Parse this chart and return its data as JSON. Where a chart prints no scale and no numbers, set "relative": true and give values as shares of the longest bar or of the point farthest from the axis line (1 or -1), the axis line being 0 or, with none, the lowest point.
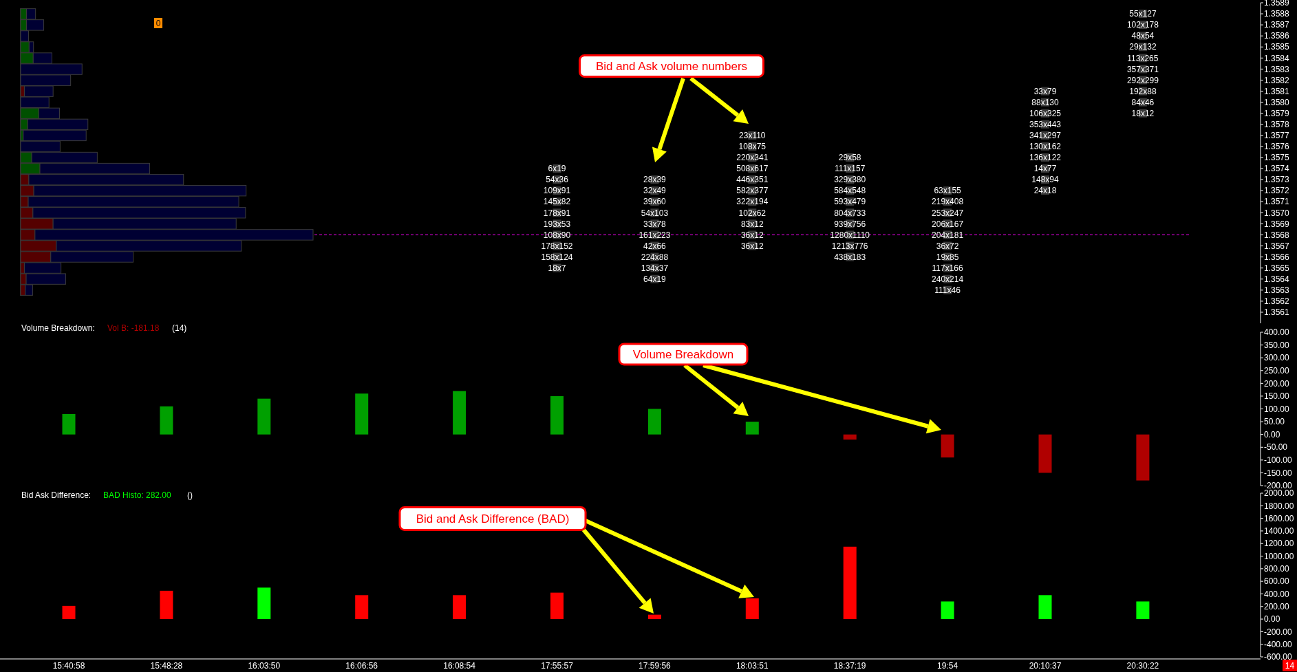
{
  "chart_data": [
    {
      "type": "scatter",
      "marker": "square",
      "categories": [
        "15:40:58",
        "15:48:28",
        "16:03:50",
        "16:06:56",
        "16:08:54",
        "17:55:57",
        "17:59:56",
        "18:03:51",
        "18:37:19",
        "19:54",
        "20:10:37",
        "20:30:22"
      ],
      "tick_labels": "y",
      "ylim": [
        1.356,
        1.3589
      ],
      "yticks": [
        1.3561,
        1.3562,
        1.3563,
        1.3564,
        1.3565,
        1.3566,
        1.3567,
        1.3568,
        1.3569,
        {
          "value": 1.357,
          "label": "1.3570"
        },
        1.3571,
        1.3572,
        1.3573,
        1.3574,
        1.3575,
        1.3576,
        1.3577,
        1.3578,
        1.3579,
        {
          "value": 1.358,
          "label": "1.3580"
        },
        1.3581,
        1.3582,
        1.3583,
        1.3584,
        1.3585,
        1.3586,
        1.3587,
        1.3588,
        1.3589
      ],
      "ref_lines": [
        {
          "axis": "y",
          "value": 1.3568,
          "color": "#ff00ff",
          "line_style": "dashed"
        }
      ],
      "annotations": [
        "Bid and Ask volume numbers",
        "0"
      ],
      "series": [
        {
          "color": "#3a3a3a",
          "x": [
            "17:55:57",
            "17:55:57",
            "17:55:57",
            "17:55:57",
            "17:55:57",
            "17:55:57",
            "17:55:57",
            "17:55:57",
            "17:55:57",
            "17:55:57"
          ],
          "values": [
            1.3574,
            1.3573,
            1.3572,
            1.3571,
            1.357,
            1.3569,
            1.3568,
            1.3567,
            1.3566,
            1.3565
          ],
          "value_labels": [
            "6x19",
            "54x36",
            "109x91",
            "145x82",
            "178x91",
            "193x53",
            "108x90",
            "178x152",
            "158x124",
            "18x7"
          ]
        },
        {
          "color": "#3a3a3a",
          "x": [
            "17:59:56",
            "17:59:56",
            "17:59:56",
            "17:59:56",
            "17:59:56",
            "17:59:56",
            "17:59:56",
            "17:59:56",
            "17:59:56",
            "17:59:56"
          ],
          "values": [
            1.3573,
            1.3572,
            1.3571,
            1.357,
            1.3569,
            1.3568,
            1.3567,
            1.3566,
            1.3565,
            1.3564
          ],
          "value_labels": [
            "28x39",
            "32x49",
            "39x60",
            "54x103",
            "33x78",
            "161x223",
            "42x66",
            "224x88",
            "134x37",
            "64x19"
          ]
        },
        {
          "color": "#3a3a3a",
          "x": [
            "18:03:51",
            "18:03:51",
            "18:03:51",
            "18:03:51",
            "18:03:51",
            "18:03:51",
            "18:03:51",
            "18:03:51",
            "18:03:51",
            "18:03:51",
            "18:03:51"
          ],
          "values": [
            1.3577,
            1.3576,
            1.3575,
            1.3574,
            1.3573,
            1.3572,
            1.3571,
            1.357,
            1.3569,
            1.3568,
            1.3567
          ],
          "value_labels": [
            "23x110",
            "108x75",
            "220x341",
            "508x617",
            "446x351",
            "582x377",
            "322x194",
            "102x62",
            "83x12",
            "36x12",
            "36x12"
          ]
        },
        {
          "color": "#3a3a3a",
          "x": [
            "18:37:19",
            "18:37:19",
            "18:37:19",
            "18:37:19",
            "18:37:19",
            "18:37:19",
            "18:37:19",
            "18:37:19",
            "18:37:19",
            "18:37:19"
          ],
          "values": [
            1.3575,
            1.3574,
            1.3573,
            1.3572,
            1.3571,
            1.357,
            1.3569,
            1.3568,
            1.3567,
            1.3566
          ],
          "value_labels": [
            "29x58",
            "111x157",
            "329x380",
            "584x548",
            "593x479",
            "804x733",
            "939x756",
            "1280x1110",
            "1213x776",
            "438x183"
          ]
        },
        {
          "color": "#3a3a3a",
          "x": [
            "19:54",
            "19:54",
            "19:54",
            "19:54",
            "19:54",
            "19:54",
            "19:54",
            "19:54",
            "19:54",
            "19:54"
          ],
          "values": [
            1.3572,
            1.3571,
            1.357,
            1.3569,
            1.3568,
            1.3567,
            1.3566,
            1.3565,
            1.3564,
            1.3563
          ],
          "value_labels": [
            "63x155",
            "219x408",
            "253x247",
            "206x167",
            "204x181",
            "36x72",
            "19x85",
            "117x166",
            "240x214",
            "111x46"
          ]
        },
        {
          "color": "#3a3a3a",
          "x": [
            "20:10:37",
            "20:10:37",
            "20:10:37",
            "20:10:37",
            "20:10:37",
            "20:10:37",
            "20:10:37",
            "20:10:37",
            "20:10:37",
            "20:10:37"
          ],
          "values": [
            1.3581,
            1.358,
            1.3579,
            1.3578,
            1.3577,
            1.3576,
            1.3575,
            1.3574,
            1.3573,
            1.3572
          ],
          "value_labels": [
            "33x79",
            "88x130",
            "106x325",
            "353x443",
            "341x297",
            "130x162",
            "136x122",
            "14x77",
            "148x94",
            "24x18"
          ]
        },
        {
          "color": "#3a3a3a",
          "x": [
            "20:30:22",
            "20:30:22",
            "20:30:22",
            "20:30:22",
            "20:30:22",
            "20:30:22",
            "20:30:22",
            "20:30:22",
            "20:30:22",
            "20:30:22"
          ],
          "values": [
            1.3588,
            1.3587,
            1.3586,
            1.3585,
            1.3584,
            1.3583,
            1.3582,
            1.3581,
            1.358,
            1.3579
          ],
          "value_labels": [
            "55x127",
            "102x178",
            "48x54",
            "29x132",
            "113x265",
            "357x371",
            "292x299",
            "192x88",
            "84x46",
            "18x12"
          ]
        }
      ]
    },
    {
      "type": "bar",
      "orientation": "horizontal",
      "stacked": true,
      "relative": true,
      "tick_labels": false,
      "categories": [
        null,
        null,
        null,
        null,
        null,
        null,
        null,
        null,
        null,
        null,
        null,
        null,
        null,
        null,
        null,
        null,
        null,
        null,
        null,
        null,
        null,
        null,
        null,
        null,
        null,
        null
      ],
      "series": [
        {
          "color": "#005000",
          "values": [
            0.02,
            0.02,
            null,
            0.029,
            0.043,
            null,
            null,
            null,
            null,
            0.062,
            0.024,
            0.009,
            null,
            0.038,
            0.066,
            null,
            null,
            null,
            null,
            null,
            null,
            null,
            null,
            null,
            null,
            null
          ]
        },
        {
          "color": "#550000",
          "values": [
            null,
            null,
            null,
            null,
            null,
            null,
            null,
            0.013,
            null,
            null,
            null,
            null,
            null,
            null,
            null,
            0.028,
            0.045,
            0.026,
            0.042,
            0.111,
            0.049,
            0.122,
            0.103,
            0.013,
            0.019,
            0.016
          ]
        },
        {
          "color": "#000033",
          "values": [
            0.031,
            0.059,
            0.027,
            0.015,
            0.064,
            0.21,
            0.171,
            0.098,
            0.097,
            0.071,
            0.206,
            0.215,
            0.135,
            0.224,
            0.375,
            0.529,
            0.726,
            0.72,
            0.727,
            0.626,
            0.951,
            0.633,
            0.282,
            0.125,
            0.135,
            0.025
          ]
        }
      ]
    },
    {
      "type": "bar",
      "title": "Volume Breakdown:",
      "tick_labels": "y",
      "categories": [
        "15:40:58",
        "15:48:28",
        "16:03:50",
        "16:06:56",
        "16:08:54",
        "17:55:57",
        "17:59:56",
        "18:03:51",
        "18:37:19",
        "19:54",
        "20:10:37",
        "20:30:22"
      ],
      "values": [
        80,
        110,
        140,
        160,
        170,
        150,
        100,
        50,
        -20,
        -90,
        -150,
        -180
      ],
      "colors": [
        "#00a000",
        "#00a000",
        "#00a000",
        "#00a000",
        "#00a000",
        "#00a000",
        "#00a000",
        "#00a000",
        "#b00000",
        "#b00000",
        "#b00000",
        "#b00000"
      ],
      "ylim": [
        -200,
        400
      ],
      "yticks": [
        {
          "value": -200,
          "label": "-200.00"
        },
        {
          "value": -150,
          "label": "-150.00"
        },
        {
          "value": -100,
          "label": "-100.00"
        },
        {
          "value": -50,
          "label": "-50.00"
        },
        {
          "value": 0,
          "label": "0.00"
        },
        {
          "value": 50,
          "label": "50.00"
        },
        {
          "value": 100,
          "label": "100.00"
        },
        {
          "value": 150,
          "label": "150.00"
        },
        {
          "value": 200,
          "label": "200.00"
        },
        {
          "value": 250,
          "label": "250.00"
        },
        {
          "value": 300,
          "label": "300.00"
        },
        {
          "value": 350,
          "label": "350.00"
        },
        {
          "value": 400,
          "label": "400.00"
        }
      ],
      "annotations": [
        "Vol B: -181.18",
        "(14)",
        "Volume Breakdown"
      ]
    },
    {
      "type": "bar",
      "title": "Bid Ask Difference:",
      "categories": [
        "15:40:58",
        "15:48:28",
        "16:03:50",
        "16:06:56",
        "16:08:54",
        "17:55:57",
        "17:59:56",
        "18:03:51",
        "18:37:19",
        "19:54",
        "20:10:37",
        "20:30:22"
      ],
      "values": [
        210,
        450,
        500,
        380,
        380,
        420,
        70,
        330,
        1150,
        280,
        380,
        280
      ],
      "colors": [
        "#ff0000",
        "#ff0000",
        "#00ff00",
        "#ff0000",
        "#ff0000",
        "#ff0000",
        "#ff0000",
        "#ff0000",
        "#ff0000",
        "#00ff00",
        "#00ff00",
        "#00ff00"
      ],
      "ylim": [
        -600,
        2000
      ],
      "yticks": [
        {
          "value": -600,
          "label": "-600.00"
        },
        {
          "value": -400,
          "label": "-400.00"
        },
        {
          "value": -200,
          "label": "-200.00"
        },
        {
          "value": 0,
          "label": "0.00"
        },
        {
          "value": 200,
          "label": "200.00"
        },
        {
          "value": 400,
          "label": "400.00"
        },
        {
          "value": 600,
          "label": "600.00"
        },
        {
          "value": 800,
          "label": "800.00"
        },
        {
          "value": 1000,
          "label": "1000.00"
        },
        {
          "value": 1200,
          "label": "1200.00"
        },
        {
          "value": 1400,
          "label": "1400.00"
        },
        {
          "value": 1600,
          "label": "1600.00"
        },
        {
          "value": 1800,
          "label": "1800.00"
        },
        {
          "value": 2000,
          "label": "2000.00"
        }
      ],
      "annotations": [
        "BAD Histo: 282.00",
        "()",
        "Bid and Ask Difference (BAD)",
        "14"
      ]
    }
  ]
}
